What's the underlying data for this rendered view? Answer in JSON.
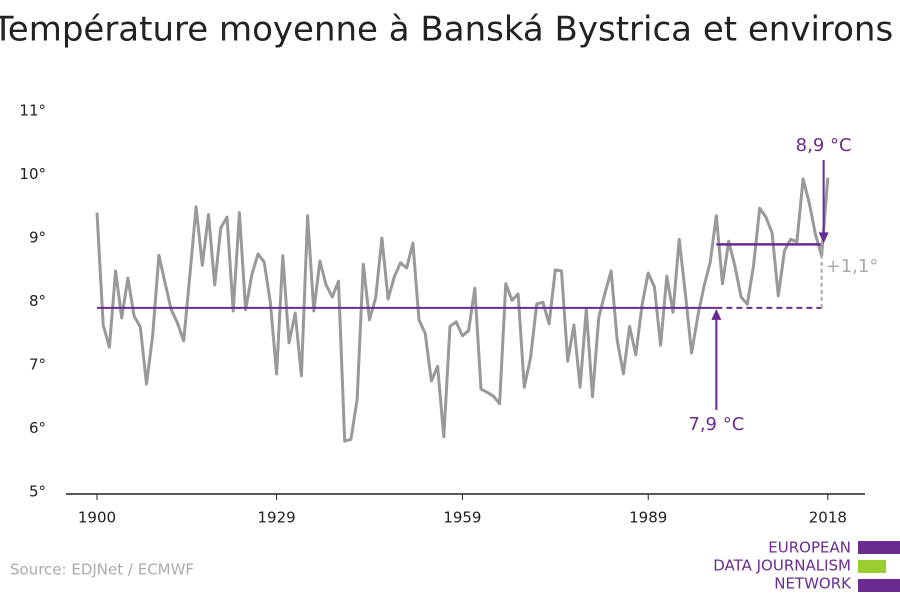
{
  "chart_data": {
    "type": "line",
    "title": "Température moyenne à Banská Bystrica et environs",
    "source": "Source: EDJNet / ECMWF",
    "logo": [
      "EUROPEAN",
      "DATA JOURNALISM",
      "NETWORK"
    ],
    "x": [
      1900,
      1901,
      1902,
      1903,
      1904,
      1905,
      1906,
      1907,
      1908,
      1909,
      1910,
      1911,
      1912,
      1913,
      1914,
      1915,
      1916,
      1917,
      1918,
      1919,
      1920,
      1921,
      1922,
      1923,
      1924,
      1925,
      1926,
      1927,
      1928,
      1929,
      1930,
      1931,
      1932,
      1933,
      1934,
      1935,
      1936,
      1937,
      1938,
      1939,
      1940,
      1941,
      1942,
      1943,
      1944,
      1945,
      1946,
      1947,
      1948,
      1949,
      1950,
      1951,
      1952,
      1953,
      1954,
      1955,
      1956,
      1957,
      1958,
      1959,
      1960,
      1961,
      1962,
      1963,
      1964,
      1965,
      1966,
      1967,
      1968,
      1969,
      1970,
      1971,
      1972,
      1973,
      1974,
      1975,
      1976,
      1977,
      1978,
      1979,
      1980,
      1981,
      1982,
      1983,
      1984,
      1985,
      1986,
      1987,
      1988,
      1989,
      1990,
      1991,
      1992,
      1993,
      1994,
      1995,
      1996,
      1997,
      1998,
      1999,
      2000,
      2001,
      2002,
      2003,
      2004,
      2005,
      2006,
      2007,
      2008,
      2009,
      2010,
      2011,
      2012,
      2013,
      2014,
      2015,
      2016,
      2017,
      2018
    ],
    "series": [
      {
        "color": "#999999",
        "values": [
          9.4,
          7.63,
          7.28,
          8.48,
          7.74,
          8.37,
          7.77,
          7.6,
          6.7,
          7.47,
          8.73,
          8.29,
          7.87,
          7.66,
          7.38,
          8.42,
          9.49,
          8.57,
          9.37,
          8.26,
          9.16,
          9.33,
          7.85,
          9.4,
          7.87,
          8.42,
          8.75,
          8.62,
          7.98,
          6.86,
          8.72,
          7.35,
          7.82,
          6.83,
          9.35,
          7.85,
          8.64,
          8.26,
          8.07,
          8.32,
          5.8,
          5.83,
          6.45,
          8.59,
          7.71,
          8.06,
          9.0,
          8.04,
          8.39,
          8.61,
          8.53,
          8.92,
          7.71,
          7.5,
          6.75,
          6.98,
          5.87,
          7.61,
          7.68,
          7.46,
          7.54,
          8.21,
          6.62,
          6.57,
          6.51,
          6.39,
          8.28,
          8.02,
          8.12,
          6.65,
          7.11,
          7.96,
          7.99,
          7.65,
          8.5,
          8.48,
          7.06,
          7.63,
          6.65,
          7.88,
          6.5,
          7.74,
          8.13,
          8.48,
          7.39,
          6.86,
          7.61,
          7.16,
          7.94,
          8.45,
          8.23,
          7.31,
          8.4,
          7.83,
          8.98,
          8.12,
          7.19,
          7.77,
          8.24,
          8.62,
          9.35,
          8.28,
          8.95,
          8.56,
          8.07,
          7.96,
          8.56,
          9.47,
          9.33,
          9.08,
          8.09,
          8.8,
          8.98,
          8.94,
          9.93,
          9.55,
          9.06,
          8.72,
          9.95
        ]
      }
    ],
    "periods": [
      {
        "value": 7.9,
        "label": "7,9 °C",
        "start": 1900,
        "end": 2000,
        "color": "#6a2c8e"
      },
      {
        "value": 8.9,
        "label": "8,9 °C",
        "start": 2000,
        "end": 2017,
        "color": "#6a2c8e"
      }
    ],
    "difference": {
      "value": 1.1,
      "label": "+1,1°"
    },
    "xlim": [
      1895,
      2024
    ],
    "xticks": [
      1900,
      1929,
      1959,
      1989,
      2018
    ],
    "ylim": [
      5,
      11.3
    ],
    "yticks": [
      {
        "value": 5,
        "label": "5°"
      },
      {
        "value": 6,
        "label": "6°"
      },
      {
        "value": 7,
        "label": "7°"
      },
      {
        "value": 8,
        "label": "8°"
      },
      {
        "value": 9,
        "label": "9°"
      },
      {
        "value": 10,
        "label": "10°"
      },
      {
        "value": 11,
        "label": "11°"
      }
    ]
  }
}
